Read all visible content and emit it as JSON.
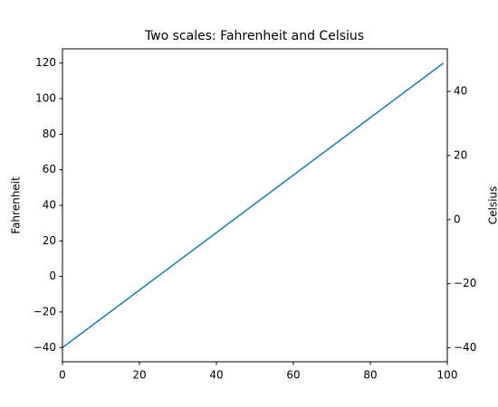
{
  "chart_data": {
    "type": "line",
    "title": "Two scales: Fahrenheit and Celsius",
    "x": [
      0,
      99
    ],
    "series": [
      {
        "name": "Fahrenheit",
        "color": "#1f77b4",
        "values": [
          -40,
          120
        ]
      }
    ],
    "ylabel": "Fahrenheit",
    "y2label": "Celsius",
    "xlim": [
      0,
      100
    ],
    "xticks": [
      0,
      20,
      40,
      60,
      80,
      100
    ],
    "ylim": [
      -48,
      128
    ],
    "yticks": [
      {
        "value": -40,
        "label": "−40"
      },
      {
        "value": -20,
        "label": "−20"
      },
      0,
      20,
      40,
      60,
      80,
      100,
      120
    ],
    "y2lim": [
      -44.4,
      53.3
    ],
    "y2ticks": [
      {
        "value": -40,
        "label": "−40"
      },
      {
        "value": -20,
        "label": "−20"
      },
      0,
      20,
      40
    ],
    "grid": false
  }
}
